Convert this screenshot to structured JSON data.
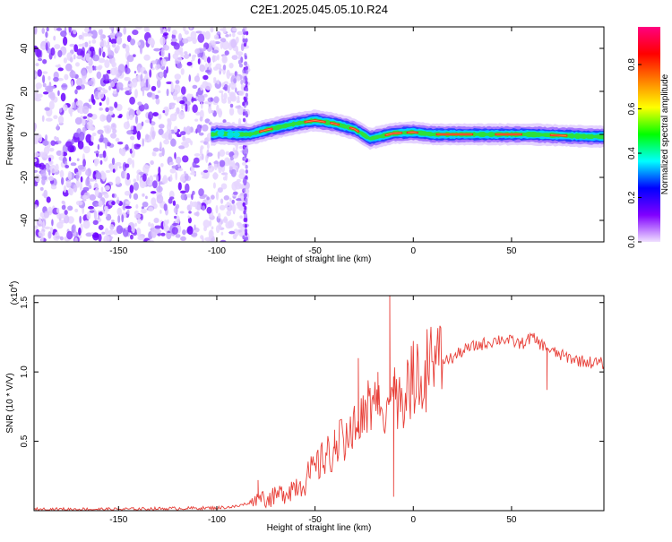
{
  "title": "C2E1.2025.045.05.10.R24",
  "chart_data": [
    {
      "type": "heatmap",
      "xlabel": "Height of straight line (km)",
      "ylabel": "Frequency (Hz)",
      "xlim": [
        -193,
        97
      ],
      "ylim": [
        -50,
        50
      ],
      "xticks": [
        -150,
        -100,
        -50,
        0,
        50
      ],
      "yticks": [
        -40,
        -20,
        0,
        20,
        40
      ],
      "colorbar": {
        "label": "Normalized spectral amplitude",
        "range": [
          0,
          0.97
        ],
        "ticks": [
          0.0,
          0.2,
          0.4,
          0.6,
          0.8
        ],
        "tick_labels": [
          "0.0",
          "0.2",
          "0.4",
          "0.6",
          "0.8"
        ],
        "colormap": [
          "#f0e0ff",
          "#8000ff",
          "#0000ff",
          "#00ffff",
          "#00ff00",
          "#ffff00",
          "#ff8000",
          "#ff0000",
          "#ff0080"
        ]
      },
      "noise_region_x": [
        -193,
        -84
      ],
      "ridge": [
        {
          "x": -100,
          "y": 0.5
        },
        {
          "x": -90,
          "y": 0
        },
        {
          "x": -83,
          "y": 0
        },
        {
          "x": -75,
          "y": 2
        },
        {
          "x": -60,
          "y": 5
        },
        {
          "x": -50,
          "y": 6.5
        },
        {
          "x": -40,
          "y": 5
        },
        {
          "x": -30,
          "y": 2.5
        },
        {
          "x": -22,
          "y": -2
        },
        {
          "x": -10,
          "y": 0.5
        },
        {
          "x": 0,
          "y": 1
        },
        {
          "x": 10,
          "y": 0
        },
        {
          "x": 30,
          "y": 0
        },
        {
          "x": 60,
          "y": 0
        },
        {
          "x": 90,
          "y": -1
        },
        {
          "x": 97,
          "y": -1
        }
      ]
    },
    {
      "type": "line",
      "xlabel": "Height of straight line (km)",
      "ylabel": "SNR (10 * V/V)",
      "multiplier_label": "(x10",
      "multiplier_exp": "4",
      "multiplier_close": ")",
      "xlim": [
        -193,
        97
      ],
      "ylim": [
        0,
        1.55
      ],
      "xticks": [
        -150,
        -100,
        -50,
        0,
        50
      ],
      "yticks": [
        0.5,
        1.0,
        1.5
      ],
      "ytick_labels": [
        "0.5",
        "1.0",
        "1.5"
      ],
      "color": "#e8413a",
      "series": [
        {
          "x": [
            -193,
            -150,
            -100,
            -90,
            -85,
            -80,
            -78,
            -75,
            -70,
            -65,
            -60,
            -55,
            -50,
            -45,
            -40,
            -35,
            -30,
            -25,
            -20,
            -15,
            -10,
            -5,
            0,
            5,
            10,
            15,
            20,
            25,
            30,
            35,
            40,
            45,
            50,
            55,
            60,
            65,
            70,
            75,
            80,
            85,
            90,
            97
          ],
          "values": [
            0.01,
            0.01,
            0.02,
            0.03,
            0.05,
            0.08,
            0.12,
            0.08,
            0.1,
            0.14,
            0.18,
            0.22,
            0.3,
            0.38,
            0.45,
            0.52,
            0.62,
            0.68,
            0.75,
            0.78,
            0.82,
            0.85,
            0.95,
            1.0,
            1.05,
            1.08,
            1.1,
            1.15,
            1.18,
            1.2,
            1.22,
            1.24,
            1.22,
            1.2,
            1.25,
            1.2,
            1.15,
            1.12,
            1.1,
            1.08,
            1.07,
            1.06
          ]
        }
      ],
      "spikes": [
        {
          "x": -79,
          "y": 0.22
        },
        {
          "x": -40,
          "y": 0.55
        },
        {
          "x": -28,
          "y": 1.1
        },
        {
          "x": -18,
          "y": 1.0
        },
        {
          "x": -12,
          "y": 1.55
        },
        {
          "x": -10,
          "y": 0.1
        },
        {
          "x": 68,
          "y": 0.87
        }
      ]
    }
  ]
}
